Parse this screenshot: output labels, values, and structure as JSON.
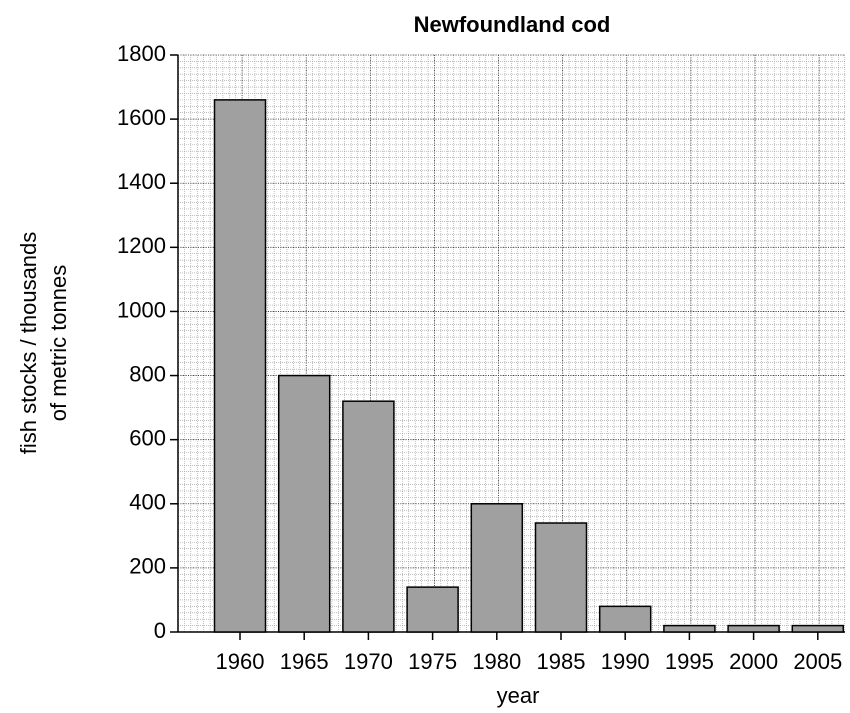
{
  "chart_data": {
    "type": "bar",
    "title": "Newfoundland cod",
    "xlabel": "year",
    "ylabel": [
      "fish stocks / thousands",
      "of metric tonnes"
    ],
    "categories": [
      "1960",
      "1965",
      "1970",
      "1975",
      "1980",
      "1985",
      "1990",
      "1995",
      "2000",
      "2005"
    ],
    "values": [
      1660,
      800,
      720,
      140,
      400,
      340,
      80,
      20,
      20,
      20
    ],
    "color": "#a0a0a0",
    "ylim": [
      0,
      1800
    ],
    "yticks": [
      0,
      200,
      400,
      600,
      800,
      1000,
      1200,
      1400,
      1600,
      1800
    ],
    "grid": true
  }
}
